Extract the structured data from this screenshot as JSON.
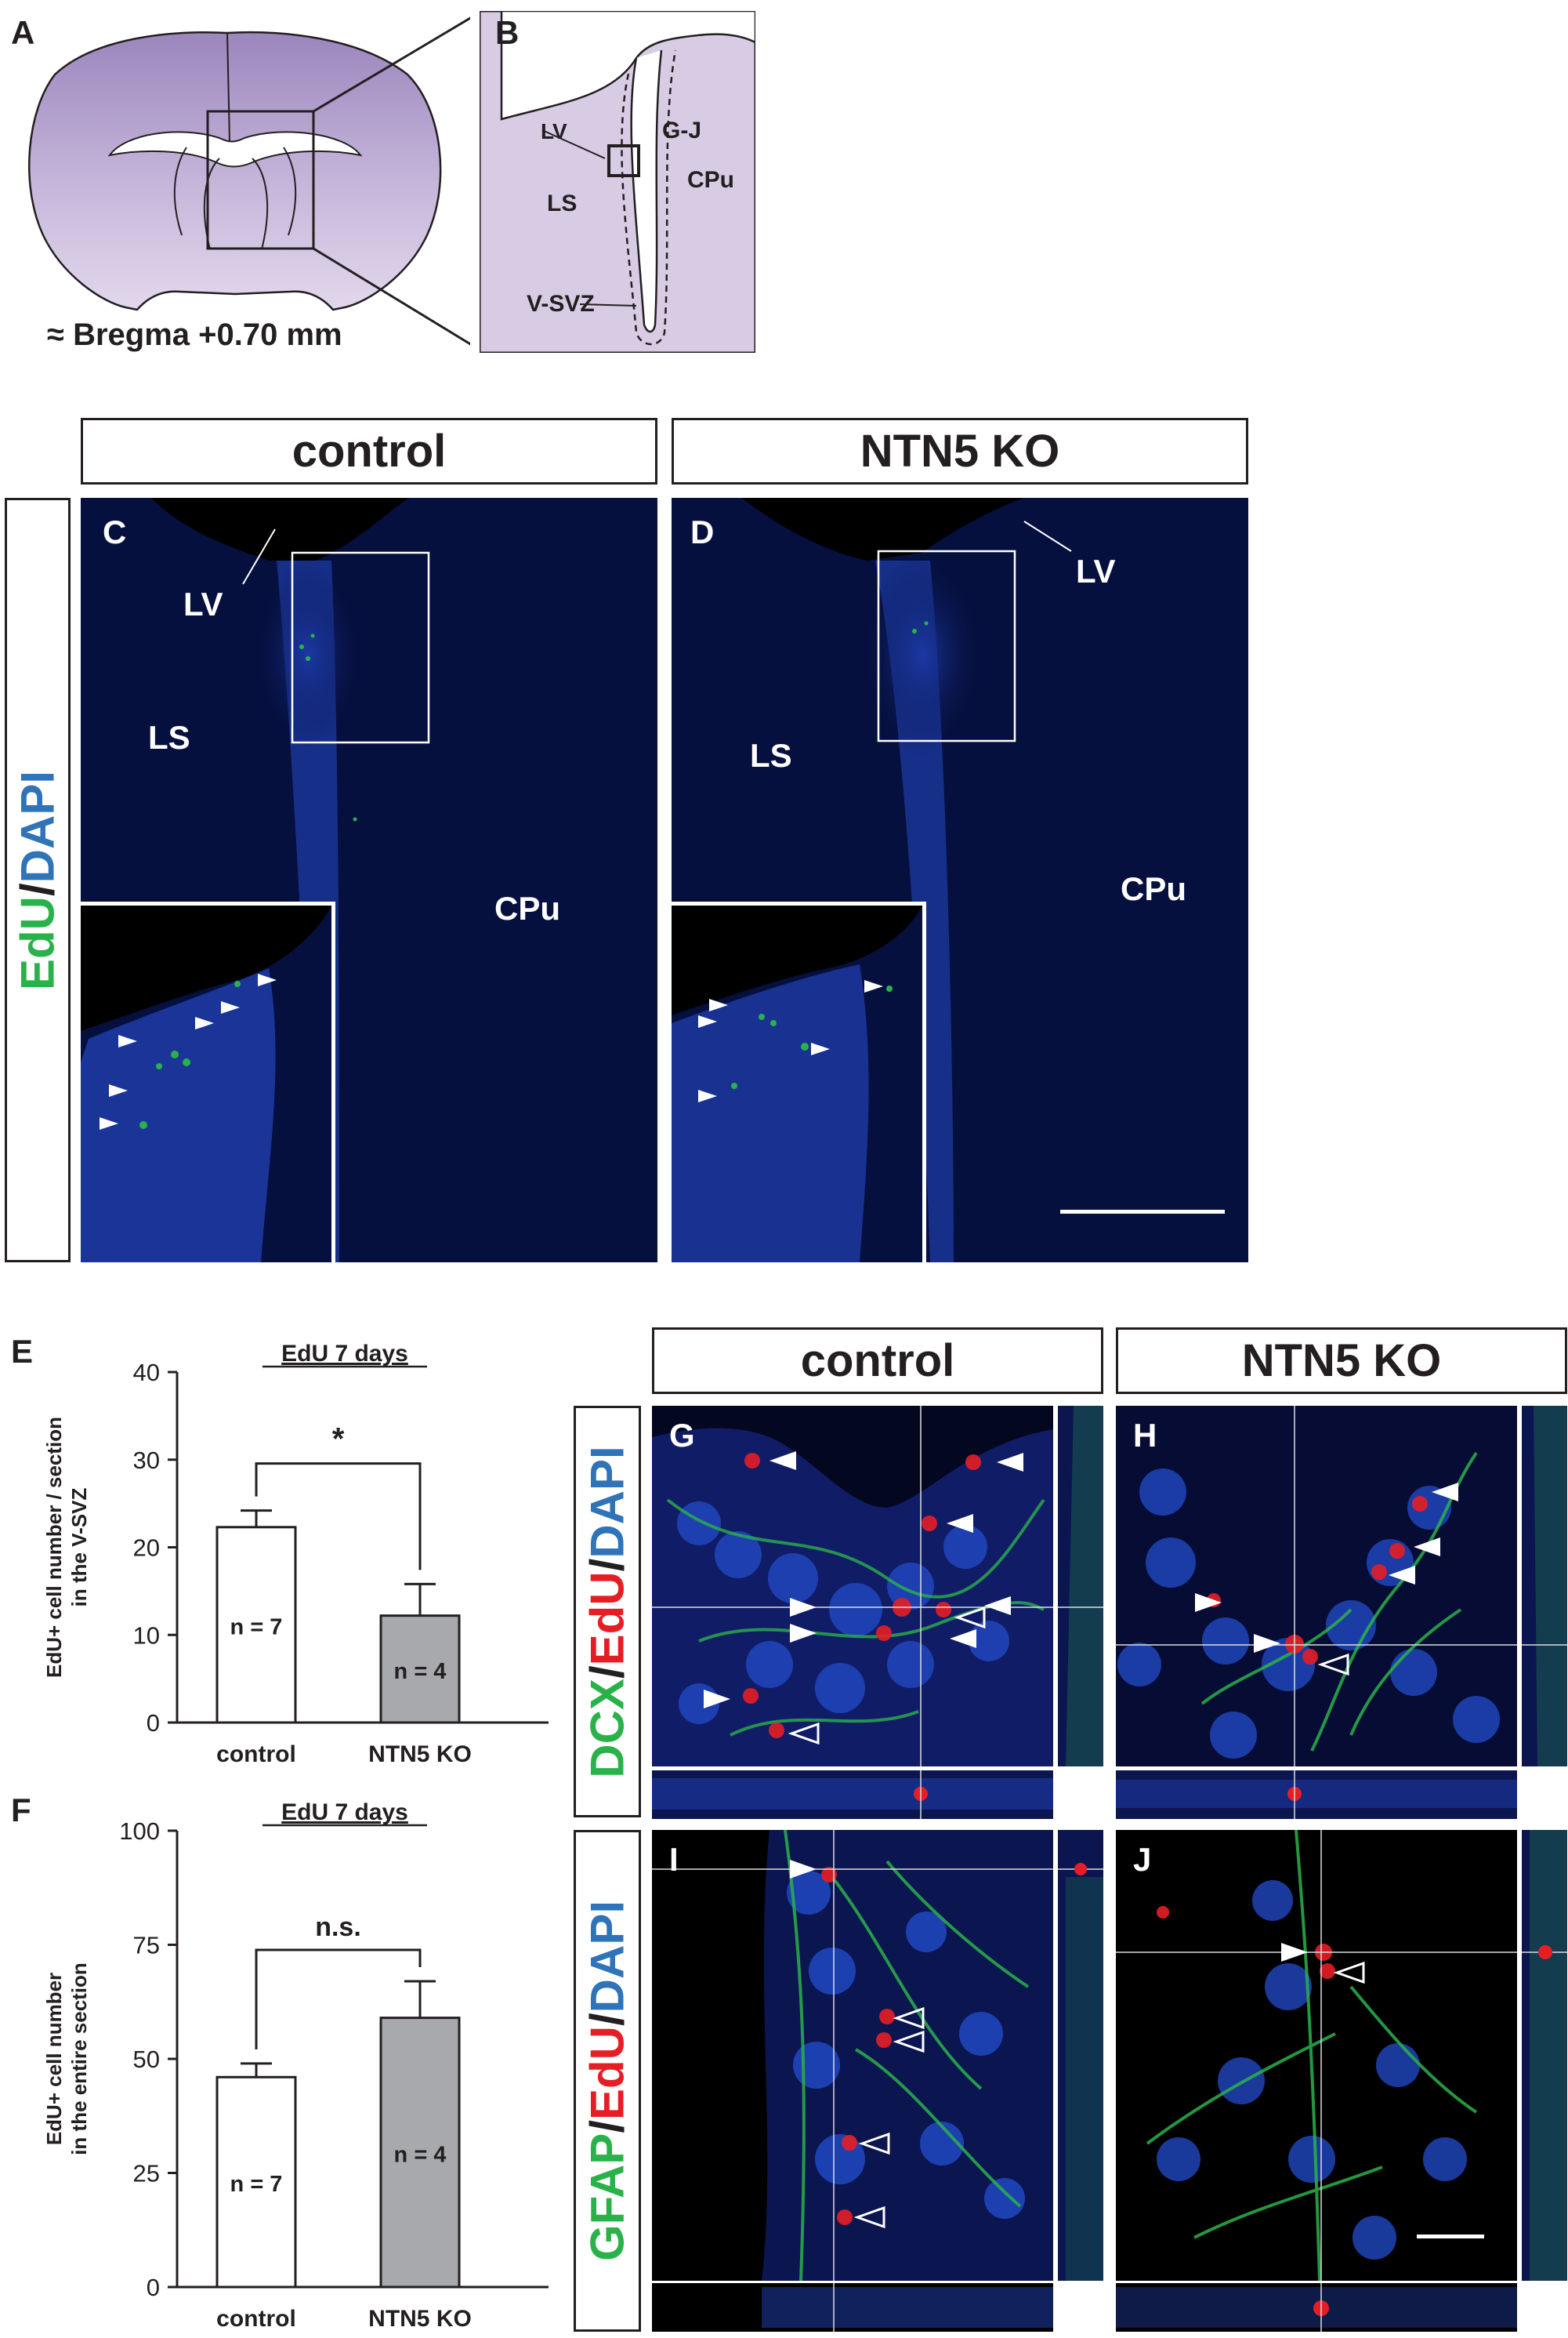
{
  "panels": {
    "A": {
      "letter": "A",
      "bregma": "≈ Bregma +0.70 mm"
    },
    "B": {
      "letter": "B",
      "labels": {
        "lv": "LV",
        "gj": "G-J",
        "cpu": "CPu",
        "ls": "LS",
        "vsvz": "V-SVZ"
      }
    },
    "row1": {
      "stain": {
        "edu": "EdU",
        "slash": "/",
        "dapi": "DAPI"
      },
      "control_header": "control",
      "ko_header": "NTN5 KO",
      "C": {
        "letter": "C",
        "lv": "LV",
        "ls": "LS",
        "cpu": "CPu"
      },
      "D": {
        "letter": "D",
        "lv": "LV",
        "ls": "LS",
        "cpu": "CPu"
      }
    },
    "row2": {
      "control_header": "control",
      "ko_header": "NTN5 KO",
      "stain_top": {
        "a": "DCX",
        "s1": "/",
        "b": "EdU",
        "s2": "/",
        "c": "DAPI"
      },
      "stain_bottom": {
        "a": "GFAP",
        "s1": "/",
        "b": "EdU",
        "s2": "/",
        "c": "DAPI"
      },
      "G": "G",
      "H": "H",
      "I": "I",
      "J": "J"
    },
    "E": {
      "letter": "E"
    },
    "F": {
      "letter": "F"
    }
  },
  "colors": {
    "brain_purple": "#9b86bd",
    "brain_light": "#d8cce4",
    "micro_bg": "#06103f",
    "edu_green": "#2ab24a",
    "edu_red": "#e51e25",
    "dapi_blue": "#2f73b8",
    "ko_bar": "#a7a9ac"
  },
  "chart_data": [
    {
      "type": "bar",
      "panel": "E",
      "title": "EdU 7 days",
      "ylabel_line1": "EdU+ cell number / section",
      "ylabel_line2": "in the V-SVZ",
      "categories": [
        "control",
        "NTN5 KO"
      ],
      "values": [
        22.3,
        12.2
      ],
      "errors": [
        1.9,
        3.6
      ],
      "n_labels": [
        "n = 7",
        "n = 4"
      ],
      "bar_colors": [
        "#ffffff",
        "#a7a9ac"
      ],
      "ylim": [
        0,
        40
      ],
      "yticks": [
        0,
        10,
        20,
        30,
        40
      ],
      "significance": "*"
    },
    {
      "type": "bar",
      "panel": "F",
      "title": "EdU 7 days",
      "ylabel_line1": "EdU+ cell number",
      "ylabel_line2": "in the entire section",
      "categories": [
        "control",
        "NTN5 KO"
      ],
      "values": [
        46,
        59
      ],
      "errors": [
        3,
        8
      ],
      "n_labels": [
        "n = 7",
        "n = 4"
      ],
      "bar_colors": [
        "#ffffff",
        "#a7a9ac"
      ],
      "ylim": [
        0,
        100
      ],
      "yticks": [
        0,
        25,
        50,
        75,
        100
      ],
      "significance": "n.s."
    }
  ]
}
